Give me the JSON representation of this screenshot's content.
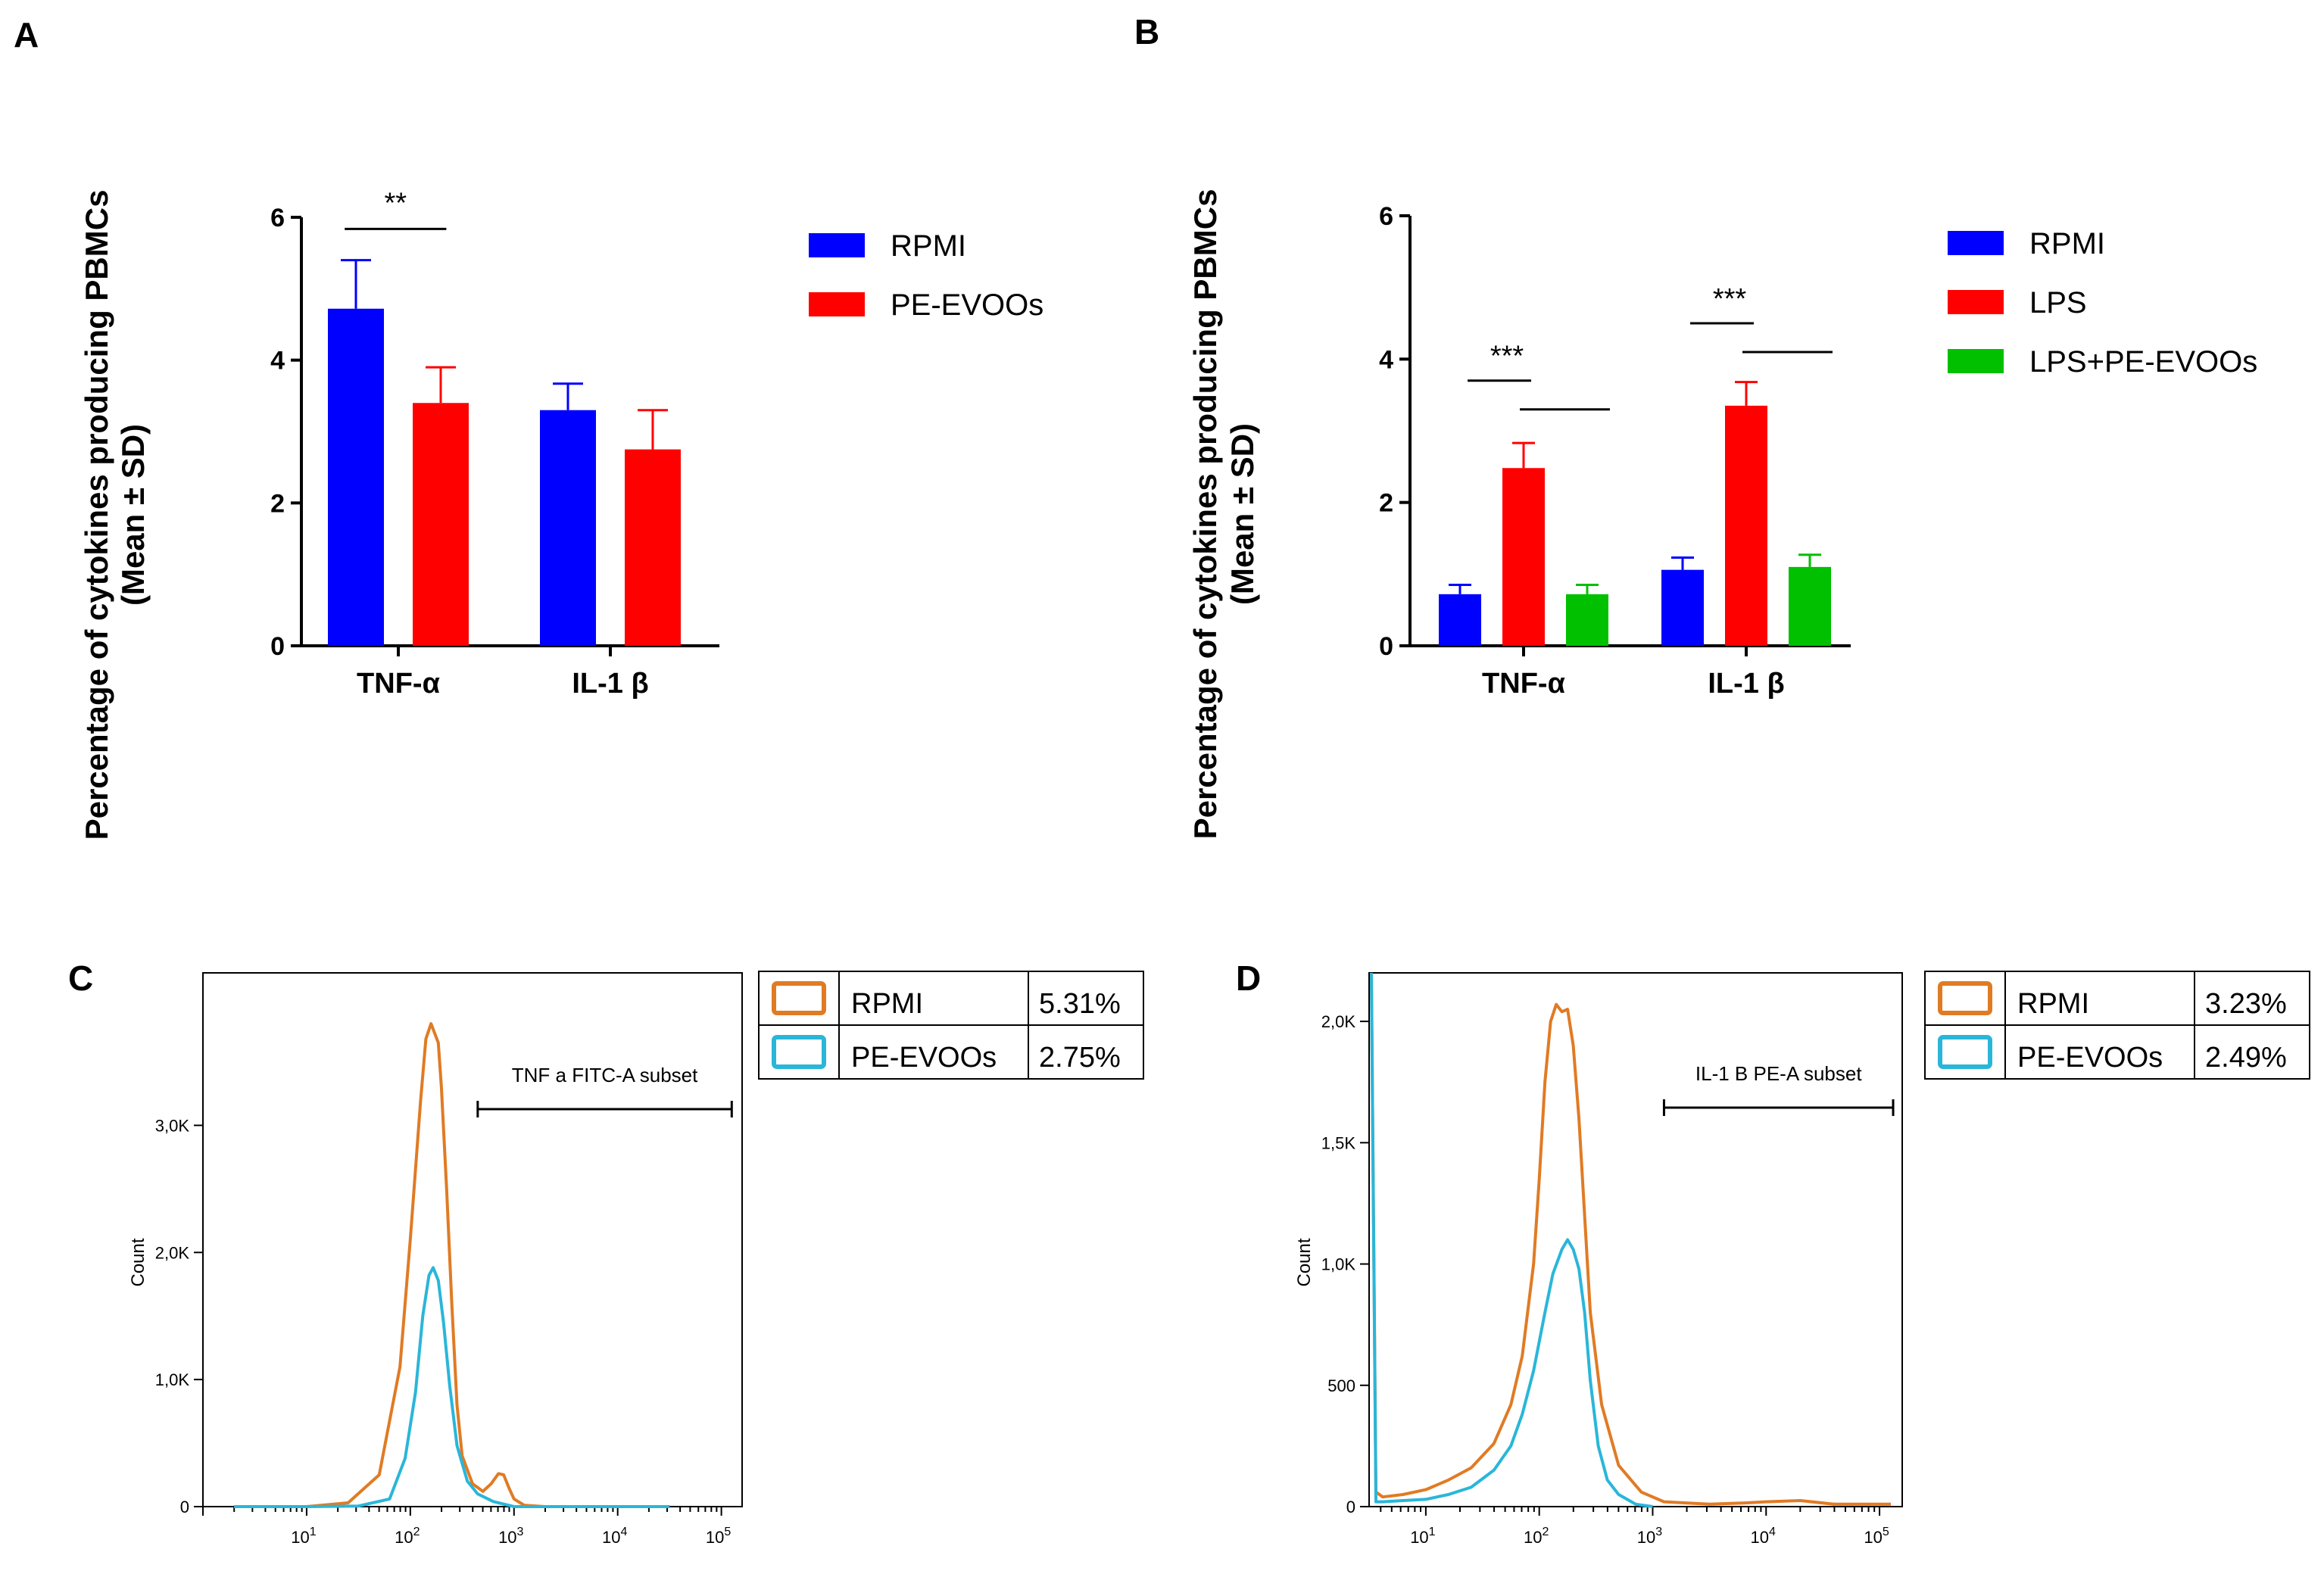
{
  "chart_data": [
    {
      "panel": "A",
      "type": "bar",
      "ylabel_line1": "Percentage of  cytokines producing PBMCs",
      "ylabel_line2": "(Mean ± SD)",
      "ylim": [
        0,
        6
      ],
      "yticks": [
        0,
        2,
        4,
        6
      ],
      "categories": [
        "TNF-α",
        "IL-1 β"
      ],
      "series": [
        {
          "name": "RPMI",
          "color": "#0000ff",
          "values": [
            4.72,
            3.3
          ],
          "errors": [
            0.68,
            0.37
          ]
        },
        {
          "name": "PE-EVOOs",
          "color": "#ff0000",
          "values": [
            3.4,
            2.75
          ],
          "errors": [
            0.5,
            0.55
          ]
        }
      ],
      "significance": [
        {
          "label": "**",
          "category": 0,
          "from_series": 0,
          "to_series": 1,
          "level": 5.9
        }
      ]
    },
    {
      "panel": "B",
      "type": "bar",
      "ylabel_line1": "Percentage of  cytokines producing PBMCs",
      "ylabel_line2": "(Mean ± SD)",
      "ylim": [
        0,
        6
      ],
      "yticks": [
        0,
        2,
        4,
        6
      ],
      "categories": [
        "TNF-α",
        "IL-1 β"
      ],
      "series": [
        {
          "name": "RPMI",
          "color": "#0000ff",
          "values": [
            0.72,
            1.06
          ],
          "errors": [
            0.13,
            0.17
          ]
        },
        {
          "name": "LPS",
          "color": "#ff0000",
          "values": [
            2.48,
            3.35
          ],
          "errors": [
            0.35,
            0.33
          ]
        },
        {
          "name": "LPS+PE-EVOOs",
          "color": "#00c000",
          "values": [
            0.72,
            1.1
          ],
          "errors": [
            0.13,
            0.17
          ]
        }
      ],
      "significance": [
        {
          "label": "***",
          "category": 0,
          "level": 3.7
        },
        {
          "label": "***",
          "category": 1,
          "level": 4.5
        }
      ]
    },
    {
      "panel": "C",
      "type": "line",
      "ylabel": "Count",
      "y_tick_labels": [
        "0",
        "1,0K",
        "2,0K",
        "3,0K"
      ],
      "y_tick_values": [
        0,
        1000,
        2000,
        3000
      ],
      "ymax": 4200,
      "x_tick_bases": [
        "10",
        "10",
        "10",
        "10",
        "10"
      ],
      "x_tick_exps": [
        "1",
        "2",
        "3",
        "4",
        "5"
      ],
      "x_log_range": [
        0.0,
        5.2
      ],
      "gate_label": "TNF a FITC-A subset",
      "gate_range_log": [
        2.65,
        5.1
      ],
      "legend_rows": [
        {
          "name": "RPMI",
          "pct": "5.31%",
          "color": "#e07b24"
        },
        {
          "name": "PE-EVOOs",
          "pct": "2.75%",
          "color": "#2ab6d9"
        }
      ],
      "series": [
        {
          "name": "RPMI",
          "color": "#e07b24",
          "x": [
            0.3,
            1.0,
            1.4,
            1.7,
            1.9,
            2.0,
            2.1,
            2.15,
            2.2,
            2.27,
            2.3,
            2.35,
            2.4,
            2.45,
            2.5,
            2.6,
            2.7,
            2.78,
            2.85,
            2.9,
            2.95,
            3.0,
            3.1,
            3.3,
            4.5
          ],
          "y": [
            0,
            0,
            30,
            250,
            1100,
            2100,
            3200,
            3680,
            3800,
            3650,
            3300,
            2500,
            1600,
            800,
            400,
            180,
            120,
            180,
            260,
            250,
            150,
            60,
            10,
            0,
            0
          ]
        },
        {
          "name": "PE-EVOOs",
          "color": "#2ab6d9",
          "x": [
            0.3,
            1.0,
            1.5,
            1.8,
            1.95,
            2.05,
            2.12,
            2.18,
            2.22,
            2.27,
            2.32,
            2.38,
            2.45,
            2.55,
            2.65,
            2.8,
            3.0,
            4.5
          ],
          "y": [
            0,
            0,
            5,
            60,
            380,
            900,
            1500,
            1820,
            1880,
            1780,
            1450,
            950,
            480,
            200,
            100,
            40,
            0,
            0
          ]
        }
      ]
    },
    {
      "panel": "D",
      "type": "line",
      "ylabel": "Count",
      "y_tick_labels": [
        "0",
        "500",
        "1,0K",
        "1,5K",
        "2,0K"
      ],
      "y_tick_values": [
        0,
        500,
        1000,
        1500,
        2000
      ],
      "ymax": 2200,
      "x_tick_bases": [
        "10",
        "10",
        "10",
        "10",
        "10"
      ],
      "x_tick_exps": [
        "1",
        "2",
        "3",
        "4",
        "5"
      ],
      "x_log_range": [
        0.5,
        5.2
      ],
      "gate_label": "IL-1 B PE-A subset",
      "gate_range_log": [
        3.1,
        5.12
      ],
      "legend_rows": [
        {
          "name": "RPMI",
          "pct": "3.23%",
          "color": "#e07b24"
        },
        {
          "name": "PE-EVOOs",
          "pct": "2.49%",
          "color": "#2ab6d9"
        }
      ],
      "series": [
        {
          "name": "RPMI",
          "color": "#e07b24",
          "x": [
            0.52,
            0.56,
            0.62,
            0.8,
            1.0,
            1.2,
            1.4,
            1.6,
            1.75,
            1.85,
            1.95,
            2.0,
            2.05,
            2.1,
            2.15,
            2.2,
            2.25,
            2.3,
            2.35,
            2.4,
            2.45,
            2.55,
            2.7,
            2.9,
            3.1,
            3.5,
            3.8,
            4.0,
            4.3,
            4.6,
            5.0,
            5.1
          ],
          "y": [
            2200,
            60,
            40,
            50,
            70,
            110,
            160,
            260,
            420,
            620,
            1000,
            1350,
            1750,
            2000,
            2070,
            2040,
            2050,
            1900,
            1600,
            1200,
            800,
            420,
            170,
            60,
            20,
            10,
            15,
            20,
            25,
            10,
            10,
            10
          ]
        },
        {
          "name": "PE-EVOOs",
          "color": "#2ab6d9",
          "x": [
            0.52,
            0.56,
            0.62,
            0.8,
            1.0,
            1.2,
            1.4,
            1.6,
            1.75,
            1.85,
            1.95,
            2.05,
            2.12,
            2.2,
            2.25,
            2.3,
            2.35,
            2.4,
            2.45,
            2.52,
            2.6,
            2.7,
            2.85,
            3.0
          ],
          "y": [
            2200,
            20,
            20,
            25,
            30,
            50,
            80,
            150,
            250,
            380,
            560,
            800,
            960,
            1060,
            1100,
            1060,
            980,
            800,
            520,
            250,
            110,
            50,
            10,
            0
          ]
        }
      ]
    }
  ]
}
